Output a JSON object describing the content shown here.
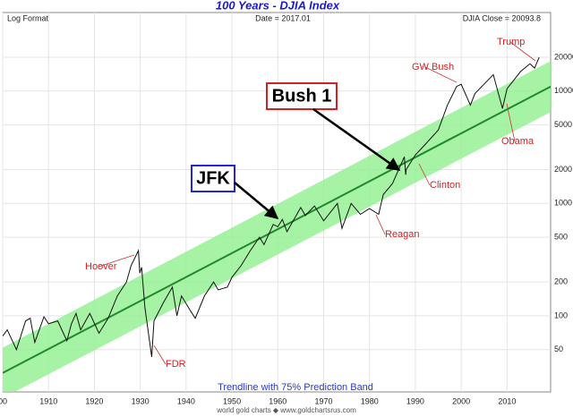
{
  "chart_data": {
    "type": "line",
    "title": "100 Years - DJIA Index",
    "format_label": "Log Format",
    "date_label": "Date = 2017.01",
    "close_label": "DJIA Close = 20093.8",
    "log_scale": true,
    "grid": true,
    "xlim": [
      1900,
      2019.5
    ],
    "ylim": [
      21,
      50000
    ],
    "xticks": [
      {
        "value": 1900,
        "label": "00"
      },
      1910,
      1920,
      1930,
      1940,
      1950,
      1960,
      1970,
      1980,
      1990,
      2000,
      2010
    ],
    "yticks": [
      50,
      100,
      200,
      500,
      1000,
      2000,
      5000,
      10000,
      20000
    ],
    "series": [
      {
        "color": "#111111",
        "x": [
          1900,
          1901,
          1903,
          1905,
          1906,
          1907,
          1909,
          1910,
          1912,
          1914,
          1915,
          1916,
          1917,
          1919,
          1921,
          1923,
          1925,
          1927,
          1928,
          1929.6,
          1929.9,
          1930.3,
          1931,
          1932.5,
          1933,
          1935,
          1937,
          1938,
          1939,
          1941,
          1942,
          1944,
          1946,
          1947,
          1949,
          1950,
          1952,
          1954,
          1956,
          1957,
          1959,
          1960,
          1961,
          1962,
          1965,
          1966,
          1968,
          1970,
          1973,
          1974,
          1976,
          1978,
          1980,
          1982,
          1983,
          1985,
          1987.6,
          1987.9,
          1988,
          1990,
          1992,
          1995,
          1997,
          1999,
          2000,
          2002,
          2003,
          2007,
          2009,
          2010,
          2013,
          2015,
          2016,
          2017
        ],
        "values": [
          66,
          75,
          50,
          90,
          95,
          58,
          98,
          85,
          90,
          60,
          85,
          105,
          75,
          105,
          70,
          95,
          150,
          200,
          280,
          380,
          240,
          270,
          120,
          43,
          90,
          130,
          180,
          100,
          150,
          110,
          95,
          150,
          200,
          170,
          180,
          220,
          280,
          380,
          500,
          430,
          650,
          620,
          720,
          560,
          920,
          780,
          950,
          700,
          1000,
          600,
          1000,
          800,
          900,
          800,
          1200,
          1500,
          2600,
          1800,
          2000,
          2700,
          3300,
          4500,
          7500,
          11000,
          11500,
          7500,
          9500,
          14000,
          7000,
          10500,
          15000,
          17500,
          16000,
          20000
        ]
      },
      {
        "color": "#1f8a2a",
        "x": [
          1900,
          2019.5
        ],
        "values": [
          31,
          10960
        ]
      }
    ],
    "band": {
      "color": "#90f090",
      "x": [
        1900,
        2019.5
      ],
      "upper": [
        52,
        18500
      ],
      "lower": [
        18.5,
        6500
      ]
    },
    "trendline_label": "Trendline with 75% Prediction Band",
    "source": "world gold charts ◆ www.goldchartsrus.com",
    "annotations": [
      "Hoover",
      "FDR",
      "Reagan",
      "Clinton",
      "GW Bush",
      "Obama",
      "Trump",
      "JFK",
      "Bush 1"
    ]
  }
}
